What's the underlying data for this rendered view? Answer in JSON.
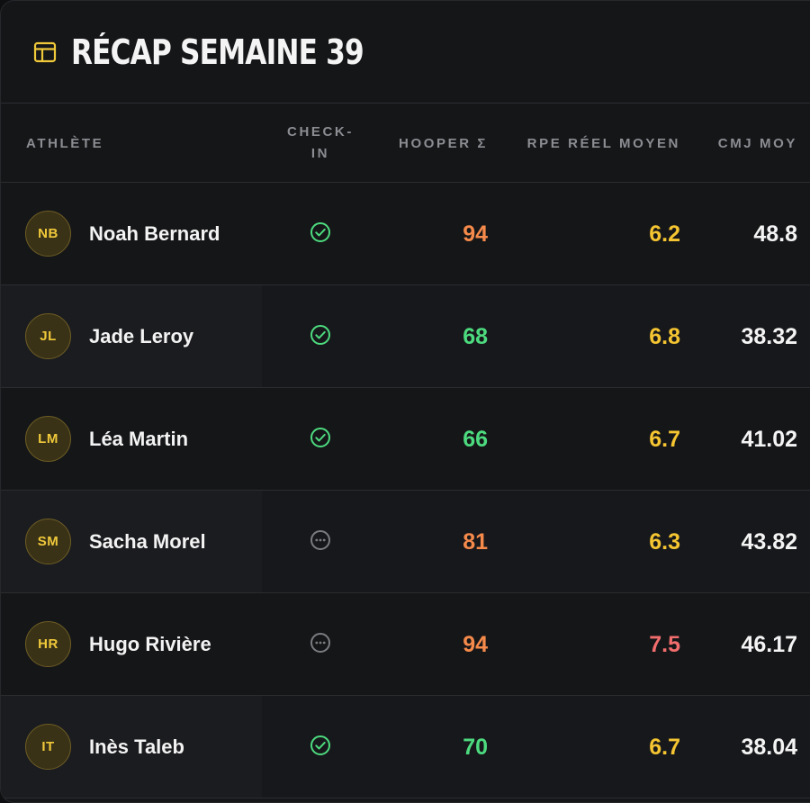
{
  "header": {
    "title": "RÉCAP SEMAINE 39",
    "icon": "table-icon",
    "accent": "#f0c93a"
  },
  "columns": {
    "athlete": "ATHLÈTE",
    "checkin_line1": "CHECK-",
    "checkin_line2": "IN",
    "hooper": "HOOPER Σ",
    "rpe": "RPE RÉEL MOYEN",
    "cmj": "CMJ MOY"
  },
  "colors": {
    "green": "#4ddb7f",
    "orange": "#f58a4b",
    "yellow": "#f5c531",
    "red": "#f26d6d",
    "pending": "#7a7c80"
  },
  "rows": [
    {
      "initials": "NB",
      "name": "Noah Bernard",
      "checkin": "done",
      "hooper": "94",
      "hooper_color": "orange",
      "rpe": "6.2",
      "rpe_color": "yellow",
      "cmj": "48.8"
    },
    {
      "initials": "JL",
      "name": "Jade Leroy",
      "checkin": "done",
      "hooper": "68",
      "hooper_color": "green",
      "rpe": "6.8",
      "rpe_color": "yellow",
      "cmj": "38.32"
    },
    {
      "initials": "LM",
      "name": "Léa Martin",
      "checkin": "done",
      "hooper": "66",
      "hooper_color": "green",
      "rpe": "6.7",
      "rpe_color": "yellow",
      "cmj": "41.02"
    },
    {
      "initials": "SM",
      "name": "Sacha Morel",
      "checkin": "pending",
      "hooper": "81",
      "hooper_color": "orange",
      "rpe": "6.3",
      "rpe_color": "yellow",
      "cmj": "43.82"
    },
    {
      "initials": "HR",
      "name": "Hugo Rivière",
      "checkin": "pending",
      "hooper": "94",
      "hooper_color": "orange",
      "rpe": "7.5",
      "rpe_color": "red",
      "cmj": "46.17"
    },
    {
      "initials": "IT",
      "name": "Inès Taleb",
      "checkin": "done",
      "hooper": "70",
      "hooper_color": "green",
      "rpe": "6.7",
      "rpe_color": "yellow",
      "cmj": "38.04"
    }
  ]
}
